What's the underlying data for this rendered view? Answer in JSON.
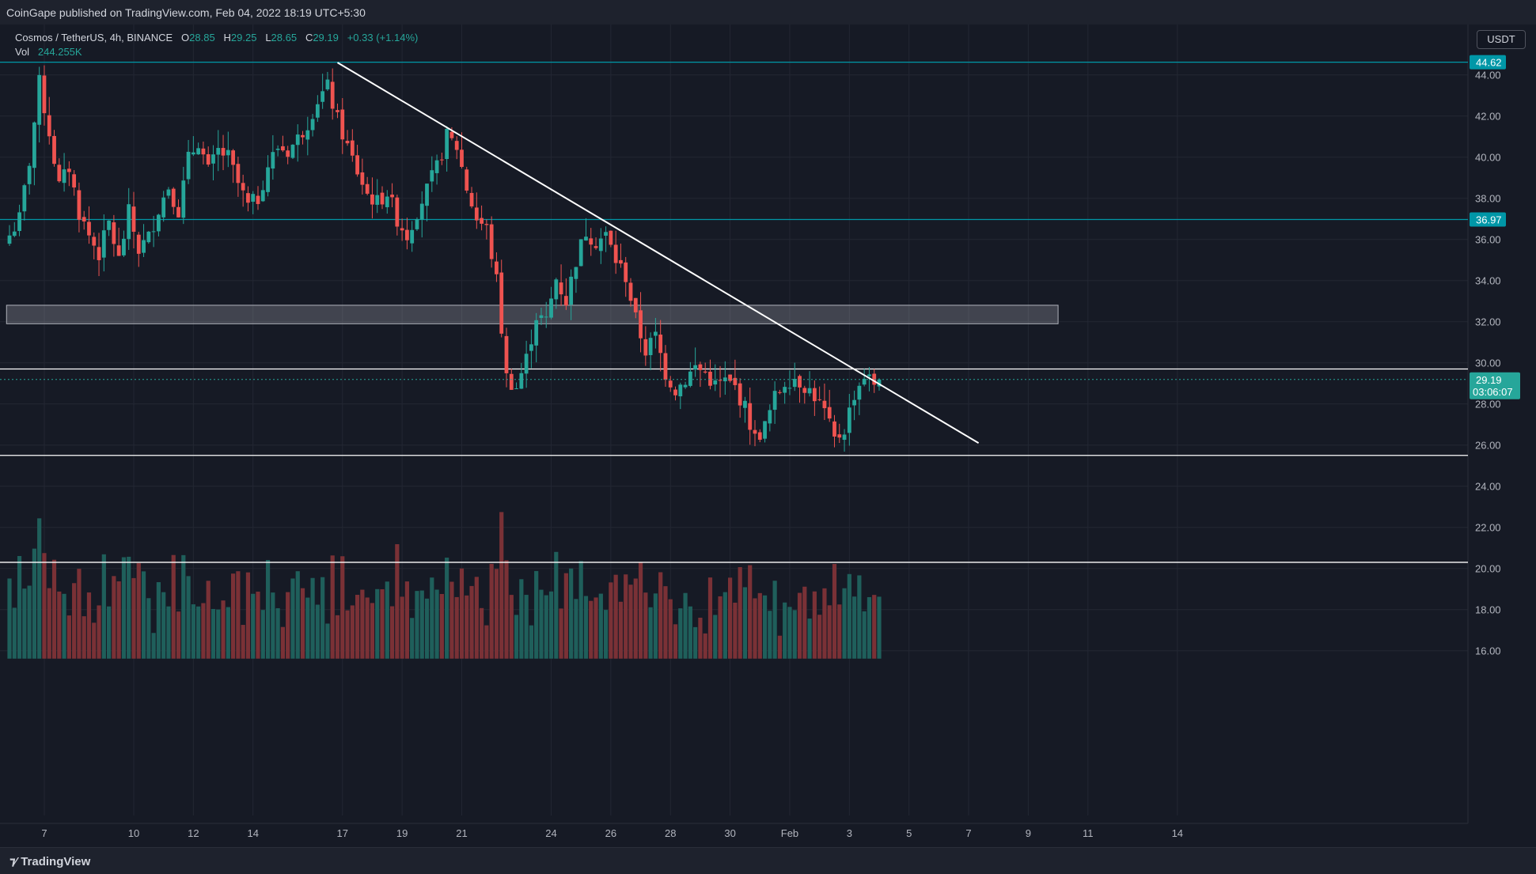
{
  "header": {
    "publisher_text": "CoinGape published on TradingView.com, Feb 04, 2022 18:19 UTC+5:30"
  },
  "legend": {
    "symbol": "Cosmos / TetherUS, 4h, BINANCE",
    "open_label": "O",
    "open": "28.85",
    "high_label": "H",
    "high": "29.25",
    "low_label": "L",
    "low": "28.65",
    "close_label": "C",
    "close": "29.19",
    "change": "+0.33 (+1.14%)",
    "vol_label": "Vol",
    "vol": "244.255K"
  },
  "currency_button": "USDT",
  "footer": {
    "brand": "TradingView"
  },
  "colors": {
    "up": "#26a69a",
    "down": "#ef5350",
    "bg": "#161a25",
    "grid": "#2a2e39",
    "text": "#d1d4dc",
    "accent": "#0097a7"
  },
  "chart_data": {
    "type": "candlestick",
    "ylim": [
      15.6,
      44.8
    ],
    "y_ticks": [
      "16.00",
      "18.00",
      "20.00",
      "22.00",
      "24.00",
      "26.00",
      "28.00",
      "30.00",
      "32.00",
      "34.00",
      "36.00",
      "38.00",
      "40.00",
      "42.00",
      "44.00"
    ],
    "x_ticks": [
      {
        "label": "7",
        "idx": 7
      },
      {
        "label": "10",
        "idx": 25
      },
      {
        "label": "12",
        "idx": 37
      },
      {
        "label": "14",
        "idx": 49
      },
      {
        "label": "17",
        "idx": 67
      },
      {
        "label": "19",
        "idx": 79
      },
      {
        "label": "21",
        "idx": 91
      },
      {
        "label": "24",
        "idx": 109
      },
      {
        "label": "26",
        "idx": 121
      },
      {
        "label": "28",
        "idx": 133
      },
      {
        "label": "30",
        "idx": 145
      },
      {
        "label": "Feb",
        "idx": 157
      },
      {
        "label": "3",
        "idx": 169
      },
      {
        "label": "5",
        "idx": 181
      },
      {
        "label": "7",
        "idx": 193
      },
      {
        "label": "9",
        "idx": 205
      },
      {
        "label": "11",
        "idx": 217
      },
      {
        "label": "14",
        "idx": 235
      }
    ],
    "horizontal_levels": [
      {
        "value": 44.62,
        "label": "44.62",
        "color": "#0097a7"
      },
      {
        "value": 36.97,
        "label": "36.97",
        "color": "#0097a7"
      },
      {
        "value": 29.7,
        "color": "#ffffff"
      },
      {
        "value": 25.5,
        "color": "#ffffff"
      },
      {
        "value": 20.3,
        "color": "#ffffff"
      }
    ],
    "zone": {
      "top": 32.8,
      "bottom": 31.9,
      "start_idx": 1,
      "end_idx": 211
    },
    "trendline": {
      "start_idx": 66,
      "start_value": 44.6,
      "end_idx": 195,
      "end_value": 26.1
    },
    "current_price": {
      "value": 29.19,
      "label": "29.19",
      "countdown": "03:06:07"
    },
    "volume_max": 1.0,
    "anchors": [
      [
        0,
        36.2
      ],
      [
        2,
        37.0
      ],
      [
        4,
        39.8
      ],
      [
        6,
        43.6
      ],
      [
        8,
        41.2
      ],
      [
        10,
        38.6
      ],
      [
        12,
        39.5
      ],
      [
        14,
        37.3
      ],
      [
        16,
        36.2
      ],
      [
        18,
        35.3
      ],
      [
        20,
        36.8
      ],
      [
        22,
        35.0
      ],
      [
        24,
        37.3
      ],
      [
        26,
        35.5
      ],
      [
        28,
        36.1
      ],
      [
        30,
        37.5
      ],
      [
        32,
        38.6
      ],
      [
        34,
        37.4
      ],
      [
        36,
        39.9
      ],
      [
        38,
        40.8
      ],
      [
        40,
        39.3
      ],
      [
        42,
        40.3
      ],
      [
        44,
        40.0
      ],
      [
        46,
        38.7
      ],
      [
        48,
        37.6
      ],
      [
        50,
        38.0
      ],
      [
        52,
        39.6
      ],
      [
        54,
        40.5
      ],
      [
        56,
        40.3
      ],
      [
        58,
        40.9
      ],
      [
        60,
        41.7
      ],
      [
        62,
        42.8
      ],
      [
        64,
        43.4
      ],
      [
        66,
        41.8
      ],
      [
        68,
        40.5
      ],
      [
        70,
        39.3
      ],
      [
        72,
        38.2
      ],
      [
        74,
        37.8
      ],
      [
        76,
        38.3
      ],
      [
        78,
        37.0
      ],
      [
        80,
        36.2
      ],
      [
        82,
        37.4
      ],
      [
        84,
        38.4
      ],
      [
        86,
        39.5
      ],
      [
        88,
        41.0
      ],
      [
        90,
        40.5
      ],
      [
        92,
        38.5
      ],
      [
        94,
        37.0
      ],
      [
        96,
        36.5
      ],
      [
        98,
        34.0
      ],
      [
        100,
        29.3
      ],
      [
        102,
        28.8
      ],
      [
        104,
        30.2
      ],
      [
        106,
        32.3
      ],
      [
        108,
        32.0
      ],
      [
        110,
        34.1
      ],
      [
        112,
        33.0
      ],
      [
        114,
        35.0
      ],
      [
        116,
        36.4
      ],
      [
        118,
        35.9
      ],
      [
        120,
        36.2
      ],
      [
        122,
        35.0
      ],
      [
        124,
        34.2
      ],
      [
        126,
        32.1
      ],
      [
        128,
        30.6
      ],
      [
        130,
        31.3
      ],
      [
        132,
        29.5
      ],
      [
        134,
        28.7
      ],
      [
        136,
        29.2
      ],
      [
        138,
        29.8
      ],
      [
        140,
        29.5
      ],
      [
        142,
        28.9
      ],
      [
        144,
        29.1
      ],
      [
        146,
        28.8
      ],
      [
        148,
        27.8
      ],
      [
        150,
        26.3
      ],
      [
        152,
        26.9
      ],
      [
        154,
        28.3
      ],
      [
        156,
        29.1
      ],
      [
        158,
        29.3
      ],
      [
        160,
        28.9
      ],
      [
        162,
        28.4
      ],
      [
        164,
        27.6
      ],
      [
        166,
        26.2
      ],
      [
        168,
        26.8
      ],
      [
        170,
        28.5
      ],
      [
        172,
        29.4
      ],
      [
        174,
        29.0
      ],
      [
        175,
        29.19
      ]
    ],
    "volumes_note": "relative volume bars per candle"
  }
}
